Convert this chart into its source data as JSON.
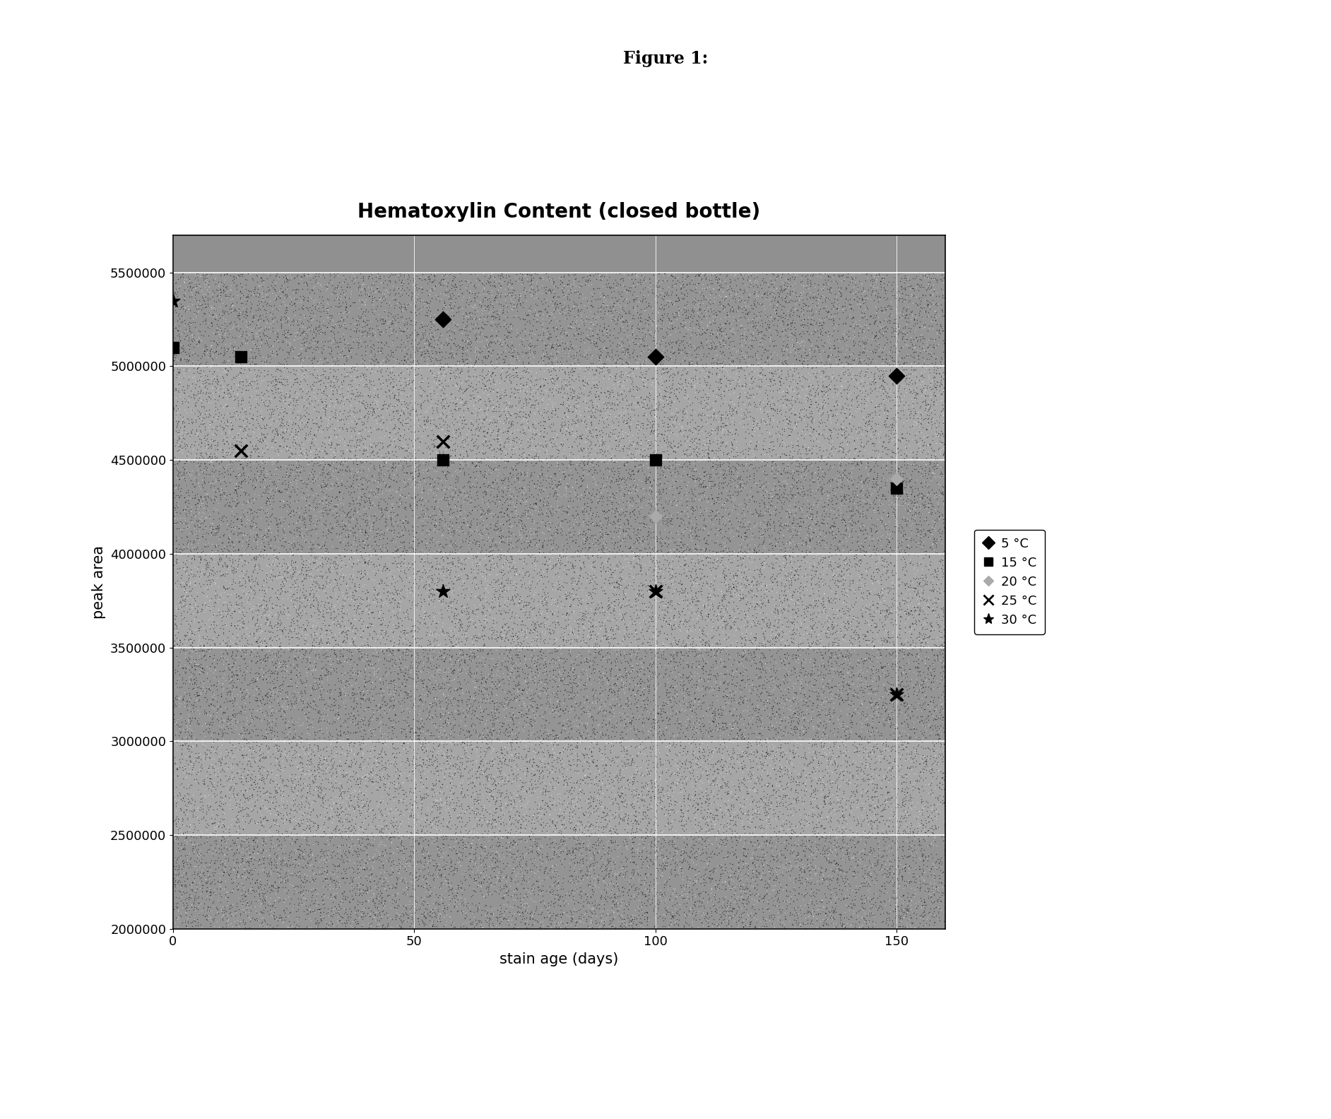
{
  "title": "Hematoxylin Content (closed bottle)",
  "suptitle": "Figure 1:",
  "xlabel": "stain age (days)",
  "ylabel": "peak area",
  "xlim": [
    0,
    160
  ],
  "ylim": [
    2000000,
    5700000
  ],
  "xticks": [
    0,
    50,
    100,
    150
  ],
  "yticks": [
    2000000,
    2500000,
    3000000,
    3500000,
    4000000,
    4500000,
    5000000,
    5500000
  ],
  "series": {
    "5C": {
      "label": "5 °C",
      "marker": "D",
      "color": "black",
      "markersize": 11,
      "x": [
        56,
        100,
        150
      ],
      "y": [
        5250000,
        5050000,
        4950000
      ]
    },
    "15C": {
      "label": "15 °C",
      "marker": "s",
      "color": "black",
      "markersize": 11,
      "x": [
        0,
        14,
        56,
        100,
        150
      ],
      "y": [
        5100000,
        5050000,
        4500000,
        4500000,
        4350000
      ]
    },
    "20C": {
      "label": "20 °C",
      "marker": "D",
      "color": "#888888",
      "markersize": 8,
      "x": [
        56,
        100,
        150
      ],
      "y": [
        4600000,
        4200000,
        4400000
      ]
    },
    "25C": {
      "label": "25 °C",
      "marker": "x",
      "color": "black",
      "markersize": 13,
      "x": [
        14,
        56,
        100,
        150
      ],
      "y": [
        4550000,
        4600000,
        3800000,
        3250000
      ]
    },
    "30C": {
      "label": "30 °C",
      "marker": "*",
      "color": "black",
      "markersize": 14,
      "x": [
        0,
        56,
        100,
        150
      ],
      "y": [
        5350000,
        3800000,
        3800000,
        3250000
      ]
    }
  },
  "band_colors": [
    "#888888",
    "#999999",
    "#888888",
    "#999999",
    "#888888",
    "#999999",
    "#888888"
  ],
  "grid_color": "white",
  "title_fontsize": 20,
  "suptitle_fontsize": 17,
  "axis_label_fontsize": 15,
  "tick_fontsize": 13,
  "legend_fontsize": 13
}
